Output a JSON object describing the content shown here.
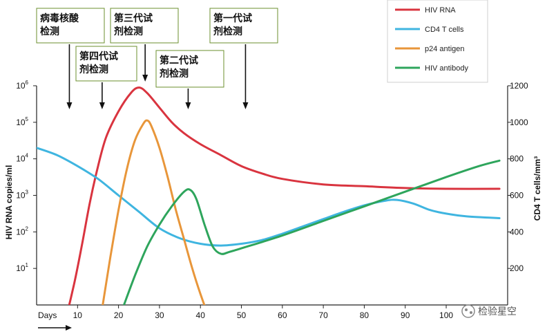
{
  "chart_data": {
    "type": "line",
    "x_axis": {
      "range": [
        0,
        115
      ],
      "ticks": [
        10,
        20,
        30,
        40,
        50,
        60,
        70,
        80,
        90,
        100
      ],
      "start_label": "Days"
    },
    "y_left": {
      "label": "HIV RNA copies/ml",
      "scale": "log",
      "range_exp": [
        0,
        6
      ],
      "tick_labels": [
        {
          "base": "10",
          "exp": "1",
          "value_exp": 1
        },
        {
          "base": "10",
          "exp": "2",
          "value_exp": 2
        },
        {
          "base": "10",
          "exp": "3",
          "value_exp": 3
        },
        {
          "base": "10",
          "exp": "4",
          "value_exp": 4
        },
        {
          "base": "10",
          "exp": "5",
          "value_exp": 5
        },
        {
          "base": "10",
          "exp": "6",
          "value_exp": 6
        }
      ]
    },
    "y_right": {
      "label": "CD4 T cells/mm³",
      "range": [
        0,
        1200
      ],
      "ticks": [
        200,
        400,
        600,
        800,
        1000,
        1200
      ]
    },
    "legend": {
      "position": "top-right",
      "items": [
        {
          "label": "HIV RNA",
          "color": "#d9343f"
        },
        {
          "label": "CD4 T cells",
          "color": "#3fb5e0"
        },
        {
          "label": "p24 antigen",
          "color": "#e8963a"
        },
        {
          "label": "HIV antibody",
          "color": "#2ea55c"
        }
      ]
    },
    "series": [
      {
        "name": "HIV RNA",
        "color": "#d9343f",
        "axis": "left",
        "points": [
          [
            0,
            -0.6
          ],
          [
            4,
            -0.55
          ],
          [
            7,
            -0.3
          ],
          [
            9,
            0.5
          ],
          [
            11,
            1.6
          ],
          [
            13,
            2.8
          ],
          [
            15,
            3.8
          ],
          [
            17,
            4.6
          ],
          [
            20,
            5.3
          ],
          [
            23,
            5.8
          ],
          [
            25,
            5.95
          ],
          [
            27,
            5.8
          ],
          [
            30,
            5.4
          ],
          [
            33,
            5.0
          ],
          [
            36,
            4.7
          ],
          [
            40,
            4.4
          ],
          [
            45,
            4.1
          ],
          [
            50,
            3.8
          ],
          [
            55,
            3.6
          ],
          [
            60,
            3.45
          ],
          [
            70,
            3.3
          ],
          [
            80,
            3.25
          ],
          [
            90,
            3.2
          ],
          [
            100,
            3.18
          ],
          [
            113,
            3.18
          ]
        ]
      },
      {
        "name": "CD4 T cells",
        "color": "#3fb5e0",
        "axis": "right",
        "points": [
          [
            0,
            860
          ],
          [
            5,
            820
          ],
          [
            10,
            760
          ],
          [
            15,
            690
          ],
          [
            20,
            600
          ],
          [
            25,
            510
          ],
          [
            30,
            420
          ],
          [
            35,
            365
          ],
          [
            40,
            335
          ],
          [
            45,
            325
          ],
          [
            50,
            335
          ],
          [
            55,
            355
          ],
          [
            60,
            390
          ],
          [
            65,
            430
          ],
          [
            70,
            470
          ],
          [
            75,
            510
          ],
          [
            80,
            545
          ],
          [
            85,
            570
          ],
          [
            88,
            575
          ],
          [
            92,
            555
          ],
          [
            96,
            520
          ],
          [
            100,
            500
          ],
          [
            105,
            485
          ],
          [
            113,
            475
          ]
        ]
      },
      {
        "name": "p24 antigen",
        "color": "#e8963a",
        "axis": "left",
        "points": [
          [
            16,
            -0.1
          ],
          [
            18,
            1.3
          ],
          [
            20,
            2.6
          ],
          [
            22,
            3.7
          ],
          [
            24,
            4.5
          ],
          [
            26,
            4.95
          ],
          [
            27,
            5.05
          ],
          [
            28,
            4.9
          ],
          [
            30,
            4.3
          ],
          [
            32,
            3.5
          ],
          [
            34,
            2.6
          ],
          [
            36,
            1.8
          ],
          [
            38,
            1.0
          ],
          [
            40,
            0.3
          ],
          [
            42,
            -0.3
          ],
          [
            44,
            -0.7
          ],
          [
            47,
            -0.9
          ]
        ]
      },
      {
        "name": "HIV antibody",
        "color": "#2ea55c",
        "axis": "left",
        "points": [
          [
            21,
            -0.1
          ],
          [
            24,
            0.8
          ],
          [
            27,
            1.6
          ],
          [
            30,
            2.2
          ],
          [
            33,
            2.7
          ],
          [
            36,
            3.1
          ],
          [
            37.5,
            3.15
          ],
          [
            39,
            2.9
          ],
          [
            41,
            2.2
          ],
          [
            43,
            1.6
          ],
          [
            45,
            1.4
          ],
          [
            47,
            1.45
          ],
          [
            50,
            1.55
          ],
          [
            60,
            1.9
          ],
          [
            70,
            2.3
          ],
          [
            80,
            2.7
          ],
          [
            90,
            3.1
          ],
          [
            100,
            3.5
          ],
          [
            108,
            3.8
          ],
          [
            113,
            3.95
          ]
        ]
      }
    ],
    "annotations": [
      {
        "text_lines": [
          "病毒核酸",
          "检测"
        ],
        "arrow_x": 8
      },
      {
        "text_lines": [
          "第四代试",
          "剂检测"
        ],
        "arrow_x": 16
      },
      {
        "text_lines": [
          "第三代试",
          "剂检测"
        ],
        "arrow_x": 26.5
      },
      {
        "text_lines": [
          "第二代试",
          "剂检测"
        ],
        "arrow_x": 37
      },
      {
        "text_lines": [
          "第一代试",
          "剂检测"
        ],
        "arrow_x": 51
      }
    ],
    "watermark": "检验星空",
    "grid": false
  },
  "colors": {
    "axis": "#222222",
    "callout_border": "#6b8f2e"
  }
}
